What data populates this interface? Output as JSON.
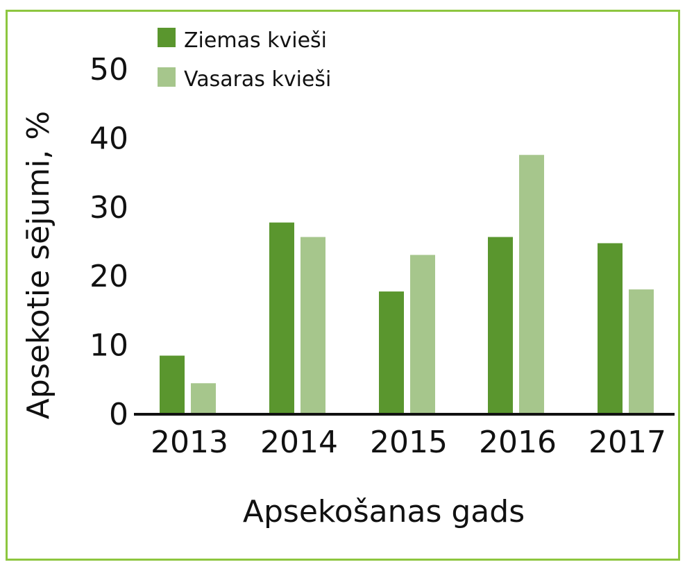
{
  "chart_data": {
    "type": "bar",
    "categories": [
      "2013",
      "2014",
      "2015",
      "2016",
      "2017"
    ],
    "series": [
      {
        "name": "Ziemas kvieši",
        "color": "#5a962e",
        "values": [
          8.5,
          27.8,
          17.8,
          25.7,
          24.8
        ]
      },
      {
        "name": "Vasaras kvieši",
        "color": "#a6c68c",
        "values": [
          4.5,
          25.7,
          23.1,
          37.6,
          18.1
        ]
      }
    ],
    "title": "",
    "xlabel": "Apsekošanas gads",
    "ylabel": "Apsekotie sējumi, %",
    "ylim": [
      0,
      50
    ],
    "yticks": [
      "0",
      "10",
      "20",
      "30",
      "40",
      "50"
    ],
    "grid": false,
    "legend_position": "top-left",
    "frame_color": "#8dc63f"
  }
}
